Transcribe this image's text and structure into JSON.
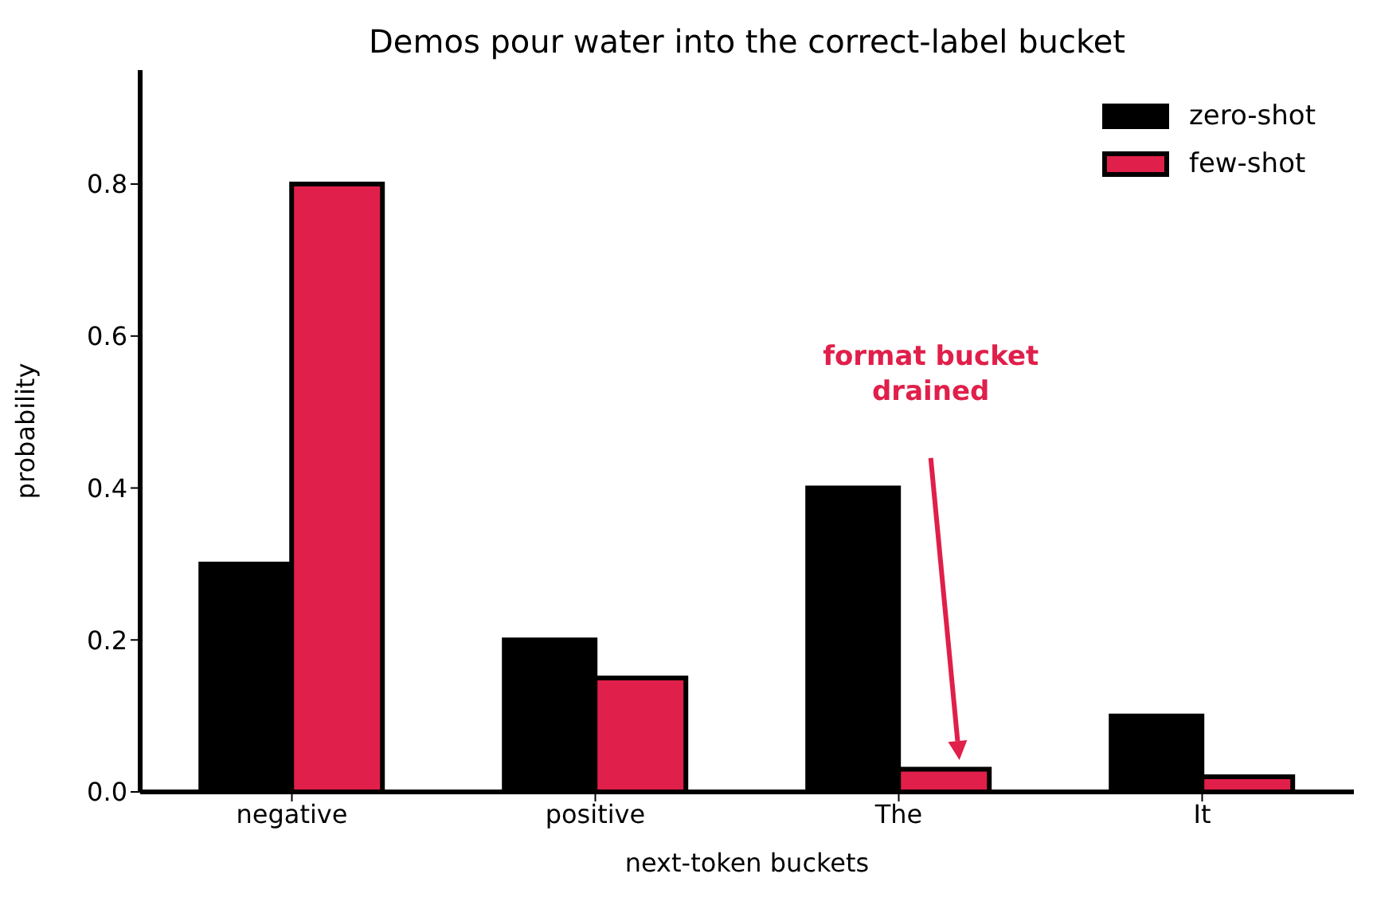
{
  "chart_data": {
    "type": "bar",
    "title": "Demos pour water into the correct-label bucket",
    "xlabel": "next-token buckets",
    "ylabel": "probability",
    "categories": [
      "negative",
      "positive",
      "The",
      "It"
    ],
    "series": [
      {
        "name": "zero-shot",
        "color": "#000000",
        "values": [
          0.3,
          0.2,
          0.4,
          0.1
        ]
      },
      {
        "name": "few-shot",
        "color": "#e01f4a",
        "values": [
          0.8,
          0.15,
          0.03,
          0.02
        ]
      }
    ],
    "ylim": [
      0,
      0.95
    ],
    "yticks": [
      {
        "value": 0,
        "label": "0.0"
      },
      0.2,
      0.4,
      0.6,
      0.8
    ],
    "grid": false,
    "legend": "top right",
    "annotations": [
      "format bucket drained"
    ]
  }
}
